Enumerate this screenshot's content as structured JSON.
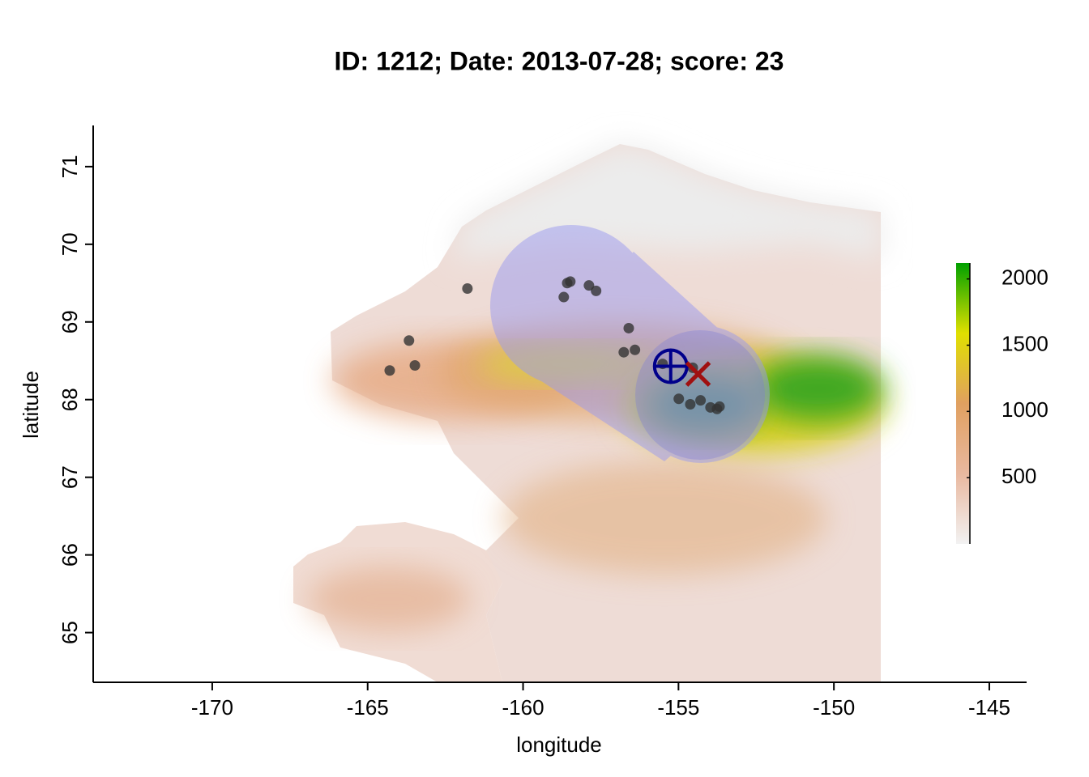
{
  "chart_data": {
    "type": "scatter",
    "title": "ID: 1212;  Date: 2013-07-28;  score: 23",
    "x_label": "longitude",
    "y_label": "latitude",
    "xlim": [
      -173.83,
      -143.8
    ],
    "ylim": [
      64.36,
      71.53
    ],
    "xticks": [
      -170,
      -165,
      -160,
      -155,
      -150,
      -145
    ],
    "yticks": [
      65,
      66,
      67,
      68,
      69,
      70,
      71
    ],
    "series": [
      {
        "color": "#333333",
        "x": [
          -164.29,
          -163.67,
          -163.48,
          -161.79,
          -158.69,
          -158.58,
          -158.48,
          -157.88,
          -157.65,
          -156.6,
          -156.76,
          -156.4,
          -155.51,
          -154.54,
          -154.99,
          -154.62,
          -154.29,
          -153.97,
          -153.68,
          -153.76
        ],
        "values": [
          68.375,
          68.76,
          68.44,
          69.43,
          69.32,
          69.5,
          69.52,
          69.47,
          69.4,
          68.92,
          68.61,
          68.64,
          68.46,
          68.41,
          68.01,
          67.94,
          67.99,
          67.9,
          67.91,
          67.88
        ]
      }
    ],
    "markers": [
      {
        "shape": "crosshair",
        "x": -155.25,
        "y": 68.43,
        "color": "#00008b"
      },
      {
        "shape": "x",
        "x": -154.37,
        "y": 68.33,
        "color": "#a01010"
      }
    ],
    "colorbar": {
      "lim": [
        0,
        2120
      ],
      "ticks": [
        500,
        1000,
        1500,
        2000
      ],
      "colors": [
        "#f2f2f2",
        "#e9b89f",
        "#e0a060",
        "#e0e000",
        "#00a000"
      ]
    }
  }
}
